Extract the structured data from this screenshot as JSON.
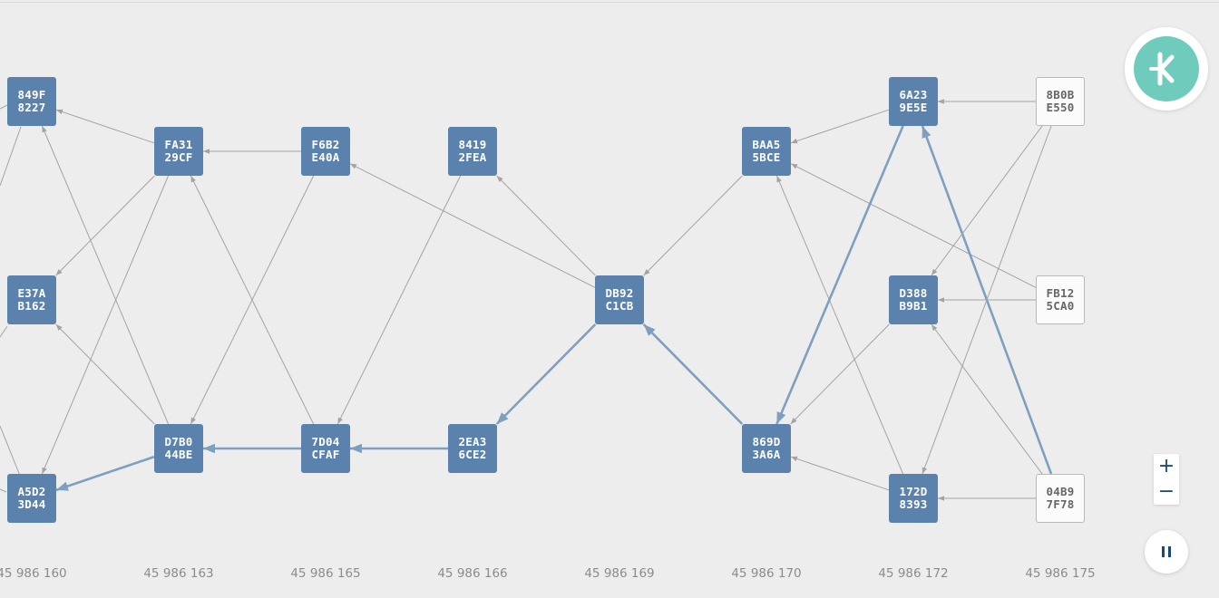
{
  "nodes": [
    {
      "id": "849F8227",
      "l1": "849F",
      "l2": "8227",
      "style": "blue"
    },
    {
      "id": "E37AB162",
      "l1": "E37A",
      "l2": "B162",
      "style": "blue"
    },
    {
      "id": "A5D23D44",
      "l1": "A5D2",
      "l2": "3D44",
      "style": "blue"
    },
    {
      "id": "FA3129CF",
      "l1": "FA31",
      "l2": "29CF",
      "style": "blue"
    },
    {
      "id": "D7B044BE",
      "l1": "D7B0",
      "l2": "44BE",
      "style": "blue"
    },
    {
      "id": "F6B2E40A",
      "l1": "F6B2",
      "l2": "E40A",
      "style": "blue"
    },
    {
      "id": "7D04CFAF",
      "l1": "7D04",
      "l2": "CFAF",
      "style": "blue"
    },
    {
      "id": "84192FEA",
      "l1": "8419",
      "l2": "2FEA",
      "style": "blue"
    },
    {
      "id": "2EA36CE2",
      "l1": "2EA3",
      "l2": "6CE2",
      "style": "blue"
    },
    {
      "id": "DB92C1CB",
      "l1": "DB92",
      "l2": "C1CB",
      "style": "blue"
    },
    {
      "id": "BAA55BCE",
      "l1": "BAA5",
      "l2": "5BCE",
      "style": "blue"
    },
    {
      "id": "869D3A6A",
      "l1": "869D",
      "l2": "3A6A",
      "style": "blue"
    },
    {
      "id": "6A239E5E",
      "l1": "6A23",
      "l2": "9E5E",
      "style": "blue"
    },
    {
      "id": "D388B9B1",
      "l1": "D388",
      "l2": "B9B1",
      "style": "blue"
    },
    {
      "id": "172D8393",
      "l1": "172D",
      "l2": "8393",
      "style": "blue"
    },
    {
      "id": "8B0BE550",
      "l1": "8B0B",
      "l2": "E550",
      "style": "white"
    },
    {
      "id": "FB125CA0",
      "l1": "FB12",
      "l2": "5CA0",
      "style": "white"
    },
    {
      "id": "04B97F78",
      "l1": "04B9",
      "l2": "7F78",
      "style": "white"
    }
  ],
  "edges": [
    {
      "from": "FA3129CF",
      "to": "849F8227"
    },
    {
      "from": "D7B044BE",
      "to": "849F8227"
    },
    {
      "from": "FA3129CF",
      "to": "E37AB162"
    },
    {
      "from": "D7B044BE",
      "to": "E37AB162"
    },
    {
      "from": "FA3129CF",
      "to": "A5D23D44"
    },
    {
      "from": "D7B044BE",
      "to": "A5D23D44",
      "highlight": true
    },
    {
      "from": "F6B2E40A",
      "to": "FA3129CF"
    },
    {
      "from": "7D04CFAF",
      "to": "FA3129CF"
    },
    {
      "from": "F6B2E40A",
      "to": "D7B044BE"
    },
    {
      "from": "7D04CFAF",
      "to": "D7B044BE",
      "highlight": true
    },
    {
      "from": "84192FEA",
      "to": "7D04CFAF"
    },
    {
      "from": "2EA36CE2",
      "to": "7D04CFAF",
      "highlight": true
    },
    {
      "from": "DB92C1CB",
      "to": "F6B2E40A"
    },
    {
      "from": "DB92C1CB",
      "to": "84192FEA"
    },
    {
      "from": "DB92C1CB",
      "to": "2EA36CE2",
      "highlight": true
    },
    {
      "from": "BAA55BCE",
      "to": "DB92C1CB"
    },
    {
      "from": "869D3A6A",
      "to": "DB92C1CB",
      "highlight": true
    },
    {
      "from": "6A239E5E",
      "to": "BAA55BCE"
    },
    {
      "from": "FB125CA0",
      "to": "BAA55BCE"
    },
    {
      "from": "172D8393",
      "to": "BAA55BCE"
    },
    {
      "from": "6A239E5E",
      "to": "869D3A6A",
      "highlight": true
    },
    {
      "from": "D388B9B1",
      "to": "869D3A6A"
    },
    {
      "from": "172D8393",
      "to": "869D3A6A"
    },
    {
      "from": "8B0BE550",
      "to": "6A239E5E"
    },
    {
      "from": "04B97F78",
      "to": "6A239E5E",
      "highlight": true
    },
    {
      "from": "8B0BE550",
      "to": "D388B9B1"
    },
    {
      "from": "FB125CA0",
      "to": "D388B9B1"
    },
    {
      "from": "04B97F78",
      "to": "D388B9B1"
    },
    {
      "from": "8B0BE550",
      "to": "172D8393"
    },
    {
      "from": "04B97F78",
      "to": "172D8393"
    }
  ],
  "axis_ticks": [
    "45 986 160",
    "45 986 163",
    "45 986 165",
    "45 986 166",
    "45 986 169",
    "45 986 170",
    "45 986 172",
    "45 986 175"
  ],
  "colors": {
    "background": "#ededed",
    "node_blue": "#5b82ad",
    "node_white": "#fbfbfb",
    "edge": "#a3a3a3",
    "edge_highlight": "#7f9fc0",
    "logo": "#6fcbbb",
    "control_icon": "#1a4a74"
  },
  "controls": {
    "logo_icon": "kaspa-k-logo-icon",
    "zoom_in": "+",
    "zoom_out": "−",
    "pause_icon": "pause-icon"
  }
}
